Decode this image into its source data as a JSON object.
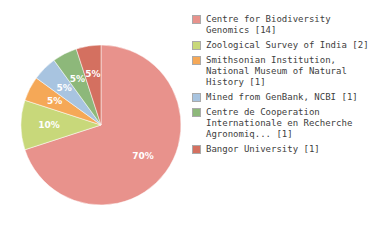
{
  "chart_data": {
    "type": "pie",
    "categories": [
      "Centre for Biodiversity\nGenomics [14]",
      "Zoological Survey of India [2]",
      "Smithsonian Institution,\nNational Museum of Natural\nHistory [1]",
      "Mined from GenBank, NCBI [1]",
      "Centre de Cooperation\nInternationale en Recherche\nAgronomiq... [1]",
      "Bangor University [1]"
    ],
    "values": [
      70,
      10,
      5,
      5,
      5,
      5
    ],
    "value_labels": [
      "70%",
      "10%",
      "5%",
      "5%",
      "5%",
      "5%"
    ],
    "colors": [
      "#e8928c",
      "#c8d87a",
      "#f5a857",
      "#a8c4e0",
      "#8db87a",
      "#d47060"
    ],
    "data_labels": true,
    "legend": "right"
  }
}
